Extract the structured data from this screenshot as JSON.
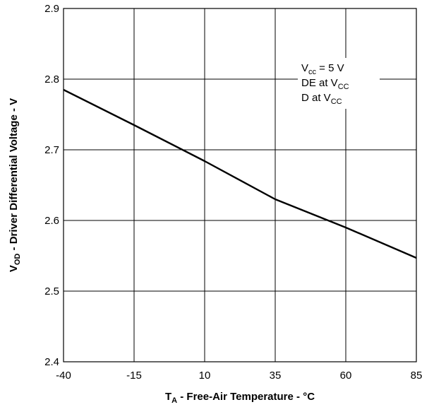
{
  "chart_data": {
    "type": "line",
    "title": "",
    "xlabel": {
      "main": "T",
      "sub": "A",
      "rest": " - Free-Air Temperature - °C"
    },
    "ylabel": {
      "main": "V",
      "sub": "OD",
      "rest": " - Driver  Differential Voltage - V"
    },
    "xlim": [
      -40,
      85
    ],
    "ylim": [
      2.4,
      2.9
    ],
    "x_ticks": [
      -40,
      -15,
      10,
      35,
      60,
      85
    ],
    "x_tick_labels": [
      "-40",
      "-15",
      "10",
      "35",
      "60",
      "85"
    ],
    "y_ticks": [
      2.4,
      2.5,
      2.6,
      2.7,
      2.8,
      2.9
    ],
    "y_tick_labels": [
      "2.4",
      "2.5",
      "2.6",
      "2.7",
      "2.8",
      "2.9"
    ],
    "grid": true,
    "series": [
      {
        "x": [
          -40,
          -15,
          10,
          35,
          60,
          85
        ],
        "values": [
          2.785,
          2.735,
          2.684,
          2.63,
          2.59,
          2.547
        ]
      }
    ],
    "annotation": [
      {
        "main": "V",
        "sub": "cc",
        "rest": " = 5 V"
      },
      {
        "main": "DE at V",
        "sub": "CC",
        "rest": ""
      },
      {
        "main": "D at V",
        "sub": "CC",
        "rest": ""
      }
    ]
  }
}
